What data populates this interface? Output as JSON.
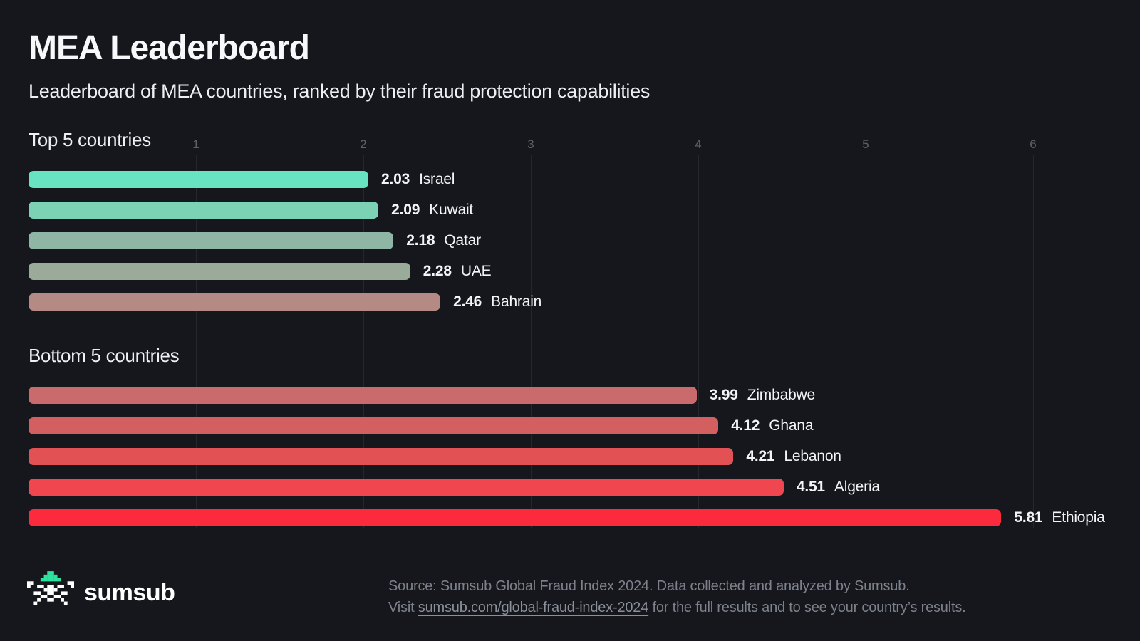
{
  "page": {
    "title": "MEA Leaderboard",
    "subtitle": "Leaderboard of MEA countries, ranked by their fraud protection capabilities"
  },
  "colors": {
    "background": "#15171c",
    "text_primary": "#f3f4f6",
    "text_muted": "#7c818b",
    "tick_label": "#5d6168",
    "gridline": "#25272d",
    "divider": "#3e4148",
    "brand_green": "#2fe2a0",
    "logo_white": "#ffffff"
  },
  "chart_data": {
    "type": "bar",
    "orientation": "horizontal",
    "value_axis": {
      "min": 0,
      "ticks": [
        1,
        2,
        3,
        4,
        5,
        6
      ],
      "visible_max": 6.47,
      "gridlines": true
    },
    "legend": "none",
    "groups": [
      {
        "label": "Top 5 countries",
        "items": [
          {
            "country": "Israel",
            "value": 2.03,
            "value_label": "2.03",
            "color": "#68e3c2"
          },
          {
            "country": "Kuwait",
            "value": 2.09,
            "value_label": "2.09",
            "color": "#7cd2b5"
          },
          {
            "country": "Qatar",
            "value": 2.18,
            "value_label": "2.18",
            "color": "#8fb5a4"
          },
          {
            "country": "UAE",
            "value": 2.28,
            "value_label": "2.28",
            "color": "#9aab9a"
          },
          {
            "country": "Bahrain",
            "value": 2.46,
            "value_label": "2.46",
            "color": "#b58a84"
          }
        ]
      },
      {
        "label": "Bottom 5 countries",
        "items": [
          {
            "country": "Zimbabwe",
            "value": 3.99,
            "value_label": "3.99",
            "color": "#c96a6d"
          },
          {
            "country": "Ghana",
            "value": 4.12,
            "value_label": "4.12",
            "color": "#d45f60"
          },
          {
            "country": "Lebanon",
            "value": 4.21,
            "value_label": "4.21",
            "color": "#e25254"
          },
          {
            "country": "Algeria",
            "value": 4.51,
            "value_label": "4.51",
            "color": "#ef4650"
          },
          {
            "country": "Ethiopia",
            "value": 5.81,
            "value_label": "5.81",
            "color": "#fb2b3d"
          }
        ]
      }
    ]
  },
  "footer": {
    "logo_text": "sumsub",
    "logo_icon": "sumsub-pixel-mark",
    "source_line1": "Source: Sumsub Global Fraud Index 2024. Data collected and analyzed by Sumsub.",
    "visit_prefix": "Visit ",
    "link_text": "sumsub.com/global-fraud-index-2024",
    "visit_suffix": " for the full results and to see your country’s results."
  }
}
